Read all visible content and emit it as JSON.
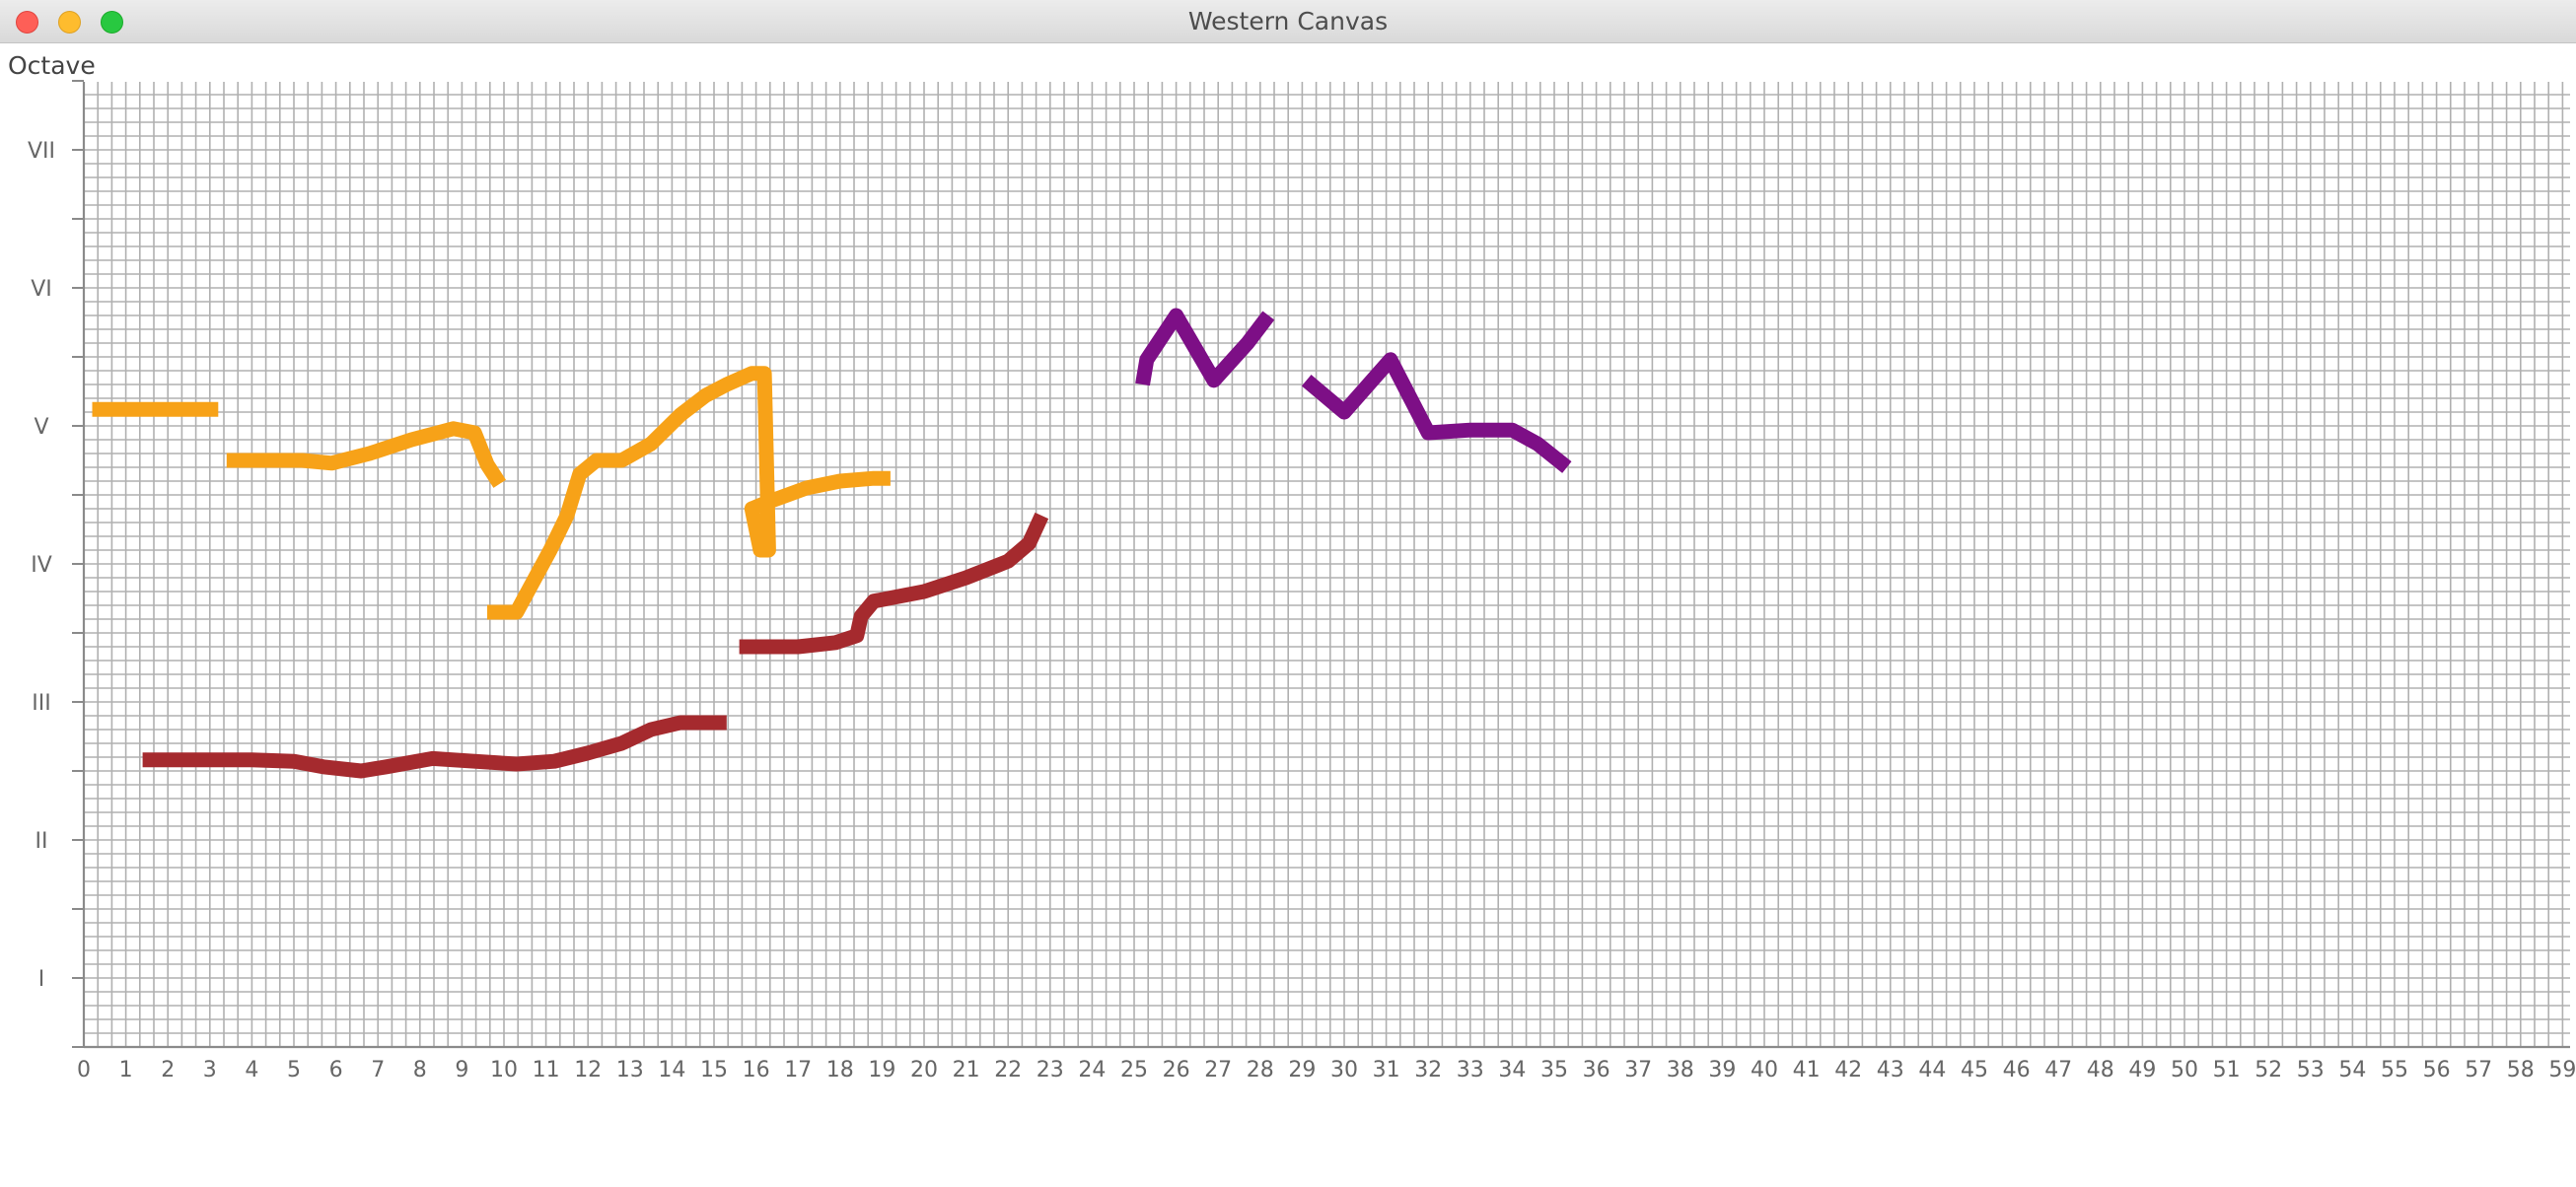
{
  "window": {
    "title": "Western Canvas"
  },
  "canvas": {
    "octave_label": "Octave",
    "y_labels": [
      "I",
      "II",
      "III",
      "IV",
      "V",
      "VI",
      "VII"
    ],
    "x_labels": [
      "0",
      "1",
      "2",
      "3",
      "4",
      "5",
      "6",
      "7",
      "8",
      "9",
      "10",
      "11",
      "12",
      "13",
      "14",
      "15",
      "16",
      "17",
      "18",
      "19",
      "20",
      "21",
      "22",
      "23",
      "24",
      "25",
      "26",
      "27",
      "28",
      "29",
      "30",
      "31",
      "32",
      "33",
      "34",
      "35",
      "36",
      "37",
      "38",
      "39",
      "40",
      "41",
      "42",
      "43",
      "44",
      "45",
      "46",
      "47",
      "48",
      "49",
      "50",
      "51",
      "52",
      "53",
      "54",
      "55",
      "56",
      "57",
      "58",
      "59"
    ],
    "x_range": [
      0,
      59
    ],
    "y_range": [
      0,
      7
    ],
    "grid_major_color": "#8a8a8a",
    "grid_minor_color": "#b0b0b0",
    "strokes": [
      {
        "color": "#f7a218",
        "points": [
          [
            0.2,
            4.62
          ],
          [
            3.2,
            4.62
          ]
        ]
      },
      {
        "color": "#f7a218",
        "points": [
          [
            3.4,
            4.25
          ],
          [
            5.2,
            4.25
          ],
          [
            5.9,
            4.23
          ],
          [
            6.8,
            4.3
          ],
          [
            7.8,
            4.4
          ],
          [
            8.8,
            4.48
          ],
          [
            9.3,
            4.45
          ],
          [
            9.6,
            4.22
          ],
          [
            9.9,
            4.08
          ]
        ]
      },
      {
        "color": "#f7a218",
        "points": [
          [
            9.6,
            3.15
          ],
          [
            10.3,
            3.15
          ],
          [
            11.1,
            3.6
          ],
          [
            11.5,
            3.85
          ],
          [
            11.8,
            4.15
          ],
          [
            12.2,
            4.25
          ],
          [
            12.8,
            4.25
          ],
          [
            13.5,
            4.37
          ],
          [
            14.2,
            4.58
          ],
          [
            14.8,
            4.72
          ],
          [
            15.3,
            4.8
          ],
          [
            15.9,
            4.88
          ],
          [
            16.2,
            4.88
          ],
          [
            16.3,
            3.6
          ],
          [
            16.1,
            3.6
          ],
          [
            15.9,
            3.9
          ],
          [
            16.3,
            3.95
          ],
          [
            17.2,
            4.05
          ],
          [
            18.0,
            4.1
          ],
          [
            18.8,
            4.12
          ],
          [
            19.2,
            4.12
          ]
        ]
      },
      {
        "color": "#a52a2e",
        "points": [
          [
            1.4,
            2.08
          ],
          [
            2.8,
            2.08
          ],
          [
            4.0,
            2.08
          ],
          [
            5.0,
            2.07
          ],
          [
            5.7,
            2.03
          ],
          [
            6.6,
            2.0
          ],
          [
            7.2,
            2.03
          ],
          [
            8.3,
            2.09
          ],
          [
            9.3,
            2.07
          ],
          [
            10.3,
            2.05
          ],
          [
            11.2,
            2.07
          ],
          [
            12.0,
            2.13
          ],
          [
            12.8,
            2.2
          ],
          [
            13.5,
            2.3
          ],
          [
            14.2,
            2.35
          ],
          [
            15.3,
            2.35
          ]
        ]
      },
      {
        "color": "#a52a2e",
        "points": [
          [
            15.6,
            2.9
          ],
          [
            17.0,
            2.9
          ],
          [
            17.9,
            2.93
          ],
          [
            18.4,
            2.98
          ],
          [
            18.5,
            3.12
          ],
          [
            18.8,
            3.23
          ],
          [
            20.0,
            3.3
          ],
          [
            21.0,
            3.4
          ],
          [
            22.0,
            3.52
          ],
          [
            22.5,
            3.65
          ],
          [
            22.8,
            3.85
          ]
        ]
      },
      {
        "color": "#7d0f86",
        "points": [
          [
            25.2,
            4.8
          ],
          [
            25.3,
            4.98
          ],
          [
            26.0,
            5.3
          ],
          [
            26.9,
            4.83
          ],
          [
            27.7,
            5.1
          ],
          [
            28.2,
            5.3
          ]
        ]
      },
      {
        "color": "#7d0f86",
        "points": [
          [
            29.1,
            4.83
          ],
          [
            30.0,
            4.6
          ],
          [
            31.1,
            4.98
          ],
          [
            32.0,
            4.45
          ],
          [
            33.0,
            4.47
          ],
          [
            34.0,
            4.47
          ],
          [
            34.6,
            4.37
          ],
          [
            35.3,
            4.2
          ]
        ]
      }
    ]
  }
}
